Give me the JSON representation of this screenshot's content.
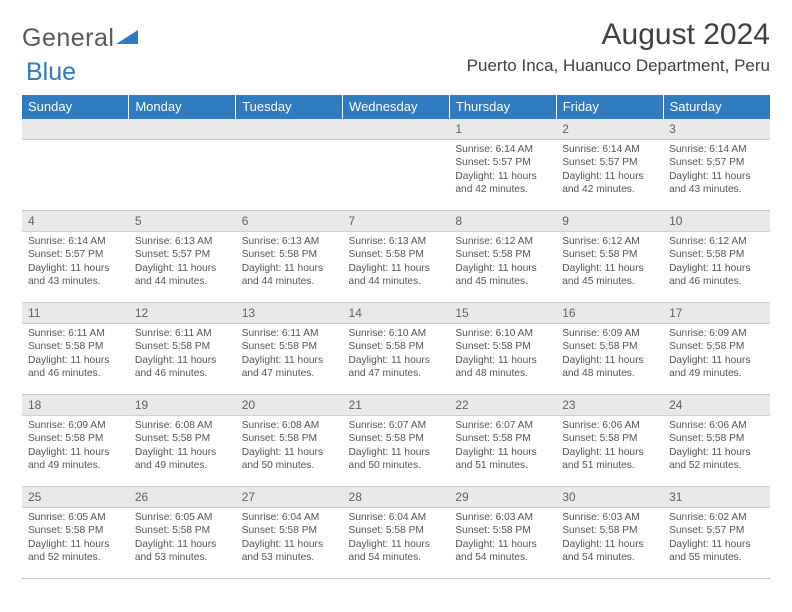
{
  "brand": {
    "part1": "General",
    "part2": "Blue"
  },
  "header": {
    "month_title": "August 2024",
    "location": "Puerto Inca, Huanuco Department, Peru"
  },
  "colors": {
    "header_bg": "#2f7bc0",
    "dayheader_bg": "#e9e9e9",
    "text": "#555555",
    "brand_gray": "#5a5a5a"
  },
  "day_labels": [
    "Sunday",
    "Monday",
    "Tuesday",
    "Wednesday",
    "Thursday",
    "Friday",
    "Saturday"
  ],
  "weeks": [
    [
      null,
      null,
      null,
      null,
      {
        "n": "1",
        "sunrise": "6:14 AM",
        "sunset": "5:57 PM",
        "daylight": "11 hours and 42 minutes."
      },
      {
        "n": "2",
        "sunrise": "6:14 AM",
        "sunset": "5:57 PM",
        "daylight": "11 hours and 42 minutes."
      },
      {
        "n": "3",
        "sunrise": "6:14 AM",
        "sunset": "5:57 PM",
        "daylight": "11 hours and 43 minutes."
      }
    ],
    [
      {
        "n": "4",
        "sunrise": "6:14 AM",
        "sunset": "5:57 PM",
        "daylight": "11 hours and 43 minutes."
      },
      {
        "n": "5",
        "sunrise": "6:13 AM",
        "sunset": "5:57 PM",
        "daylight": "11 hours and 44 minutes."
      },
      {
        "n": "6",
        "sunrise": "6:13 AM",
        "sunset": "5:58 PM",
        "daylight": "11 hours and 44 minutes."
      },
      {
        "n": "7",
        "sunrise": "6:13 AM",
        "sunset": "5:58 PM",
        "daylight": "11 hours and 44 minutes."
      },
      {
        "n": "8",
        "sunrise": "6:12 AM",
        "sunset": "5:58 PM",
        "daylight": "11 hours and 45 minutes."
      },
      {
        "n": "9",
        "sunrise": "6:12 AM",
        "sunset": "5:58 PM",
        "daylight": "11 hours and 45 minutes."
      },
      {
        "n": "10",
        "sunrise": "6:12 AM",
        "sunset": "5:58 PM",
        "daylight": "11 hours and 46 minutes."
      }
    ],
    [
      {
        "n": "11",
        "sunrise": "6:11 AM",
        "sunset": "5:58 PM",
        "daylight": "11 hours and 46 minutes."
      },
      {
        "n": "12",
        "sunrise": "6:11 AM",
        "sunset": "5:58 PM",
        "daylight": "11 hours and 46 minutes."
      },
      {
        "n": "13",
        "sunrise": "6:11 AM",
        "sunset": "5:58 PM",
        "daylight": "11 hours and 47 minutes."
      },
      {
        "n": "14",
        "sunrise": "6:10 AM",
        "sunset": "5:58 PM",
        "daylight": "11 hours and 47 minutes."
      },
      {
        "n": "15",
        "sunrise": "6:10 AM",
        "sunset": "5:58 PM",
        "daylight": "11 hours and 48 minutes."
      },
      {
        "n": "16",
        "sunrise": "6:09 AM",
        "sunset": "5:58 PM",
        "daylight": "11 hours and 48 minutes."
      },
      {
        "n": "17",
        "sunrise": "6:09 AM",
        "sunset": "5:58 PM",
        "daylight": "11 hours and 49 minutes."
      }
    ],
    [
      {
        "n": "18",
        "sunrise": "6:09 AM",
        "sunset": "5:58 PM",
        "daylight": "11 hours and 49 minutes."
      },
      {
        "n": "19",
        "sunrise": "6:08 AM",
        "sunset": "5:58 PM",
        "daylight": "11 hours and 49 minutes."
      },
      {
        "n": "20",
        "sunrise": "6:08 AM",
        "sunset": "5:58 PM",
        "daylight": "11 hours and 50 minutes."
      },
      {
        "n": "21",
        "sunrise": "6:07 AM",
        "sunset": "5:58 PM",
        "daylight": "11 hours and 50 minutes."
      },
      {
        "n": "22",
        "sunrise": "6:07 AM",
        "sunset": "5:58 PM",
        "daylight": "11 hours and 51 minutes."
      },
      {
        "n": "23",
        "sunrise": "6:06 AM",
        "sunset": "5:58 PM",
        "daylight": "11 hours and 51 minutes."
      },
      {
        "n": "24",
        "sunrise": "6:06 AM",
        "sunset": "5:58 PM",
        "daylight": "11 hours and 52 minutes."
      }
    ],
    [
      {
        "n": "25",
        "sunrise": "6:05 AM",
        "sunset": "5:58 PM",
        "daylight": "11 hours and 52 minutes."
      },
      {
        "n": "26",
        "sunrise": "6:05 AM",
        "sunset": "5:58 PM",
        "daylight": "11 hours and 53 minutes."
      },
      {
        "n": "27",
        "sunrise": "6:04 AM",
        "sunset": "5:58 PM",
        "daylight": "11 hours and 53 minutes."
      },
      {
        "n": "28",
        "sunrise": "6:04 AM",
        "sunset": "5:58 PM",
        "daylight": "11 hours and 54 minutes."
      },
      {
        "n": "29",
        "sunrise": "6:03 AM",
        "sunset": "5:58 PM",
        "daylight": "11 hours and 54 minutes."
      },
      {
        "n": "30",
        "sunrise": "6:03 AM",
        "sunset": "5:58 PM",
        "daylight": "11 hours and 54 minutes."
      },
      {
        "n": "31",
        "sunrise": "6:02 AM",
        "sunset": "5:57 PM",
        "daylight": "11 hours and 55 minutes."
      }
    ]
  ],
  "labels": {
    "sunrise": "Sunrise:",
    "sunset": "Sunset:",
    "daylight": "Daylight:"
  }
}
